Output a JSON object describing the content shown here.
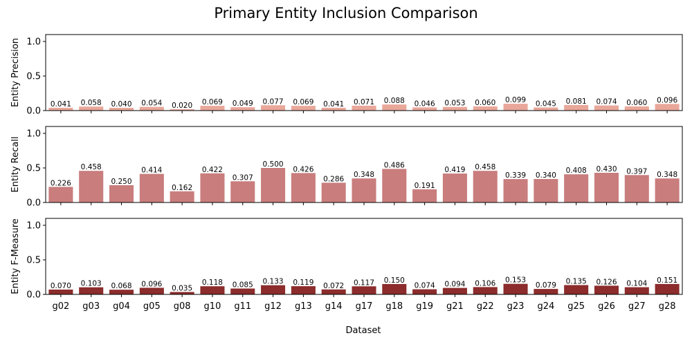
{
  "chart_data": {
    "type": "bar",
    "title": "Primary Entity Inclusion Comparison",
    "xlabel": "Dataset",
    "categories": [
      "g02",
      "g03",
      "g04",
      "g05",
      "g08",
      "g10",
      "g11",
      "g12",
      "g13",
      "g14",
      "g17",
      "g18",
      "g19",
      "g21",
      "g22",
      "g23",
      "g24",
      "g25",
      "g26",
      "g27",
      "g28"
    ],
    "ylim": [
      0,
      1.1
    ],
    "yticks": [
      "0.0",
      "0.5",
      "1.0"
    ],
    "grid": false,
    "panels": [
      {
        "ylabel": "Entity Precision",
        "color": "#e9a79a",
        "values": [
          0.041,
          0.058,
          0.04,
          0.054,
          0.02,
          0.069,
          0.049,
          0.077,
          0.069,
          0.041,
          0.071,
          0.088,
          0.046,
          0.053,
          0.06,
          0.099,
          0.045,
          0.081,
          0.074,
          0.06,
          0.096
        ],
        "labels": [
          "0.041",
          "0.058",
          "0.040",
          "0.054",
          "0.020",
          "0.069",
          "0.049",
          "0.077",
          "0.069",
          "0.041",
          "0.071",
          "0.088",
          "0.046",
          "0.053",
          "0.060",
          "0.099",
          "0.045",
          "0.081",
          "0.074",
          "0.060",
          "0.096"
        ]
      },
      {
        "ylabel": "Entity Recall",
        "color": "#c97d7d",
        "values": [
          0.226,
          0.458,
          0.25,
          0.414,
          0.162,
          0.422,
          0.307,
          0.5,
          0.426,
          0.286,
          0.348,
          0.486,
          0.191,
          0.419,
          0.458,
          0.339,
          0.34,
          0.408,
          0.43,
          0.397,
          0.348
        ],
        "labels": [
          "0.226",
          "0.458",
          "0.250",
          "0.414",
          "0.162",
          "0.422",
          "0.307",
          "0.500",
          "0.426",
          "0.286",
          "0.348",
          "0.486",
          "0.191",
          "0.419",
          "0.458",
          "0.339",
          "0.340",
          "0.408",
          "0.430",
          "0.397",
          "0.348"
        ]
      },
      {
        "ylabel": "Entity F-Measure",
        "color": "#8c2c2c",
        "values": [
          0.07,
          0.103,
          0.068,
          0.096,
          0.035,
          0.118,
          0.085,
          0.133,
          0.119,
          0.072,
          0.117,
          0.15,
          0.074,
          0.094,
          0.106,
          0.153,
          0.079,
          0.135,
          0.126,
          0.104,
          0.151
        ],
        "labels": [
          "0.070",
          "0.103",
          "0.068",
          "0.096",
          "0.035",
          "0.118",
          "0.085",
          "0.133",
          "0.119",
          "0.072",
          "0.117",
          "0.150",
          "0.074",
          "0.094",
          "0.106",
          "0.153",
          "0.079",
          "0.135",
          "0.126",
          "0.104",
          "0.151"
        ]
      }
    ]
  }
}
